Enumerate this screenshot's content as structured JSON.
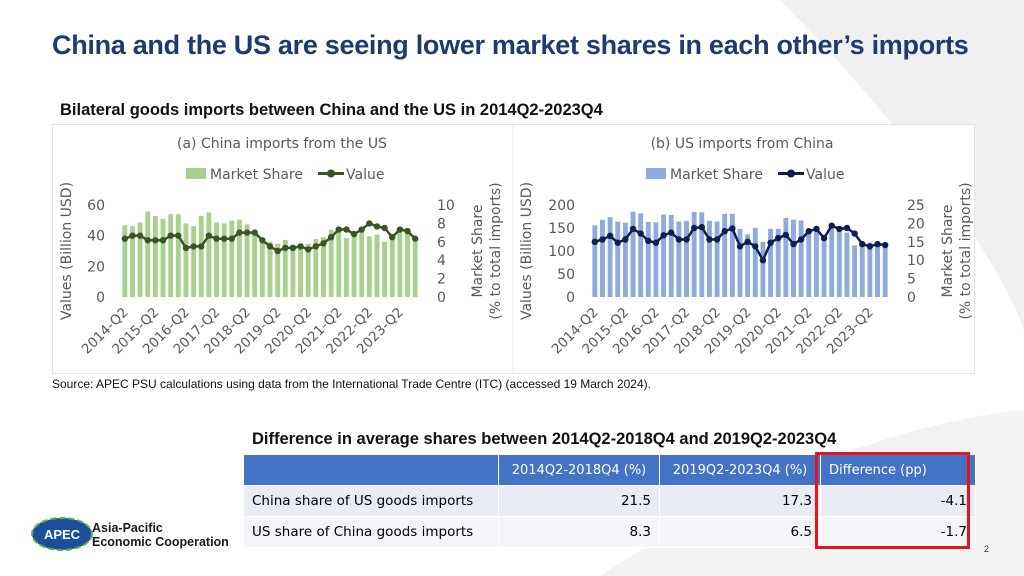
{
  "title": "China and the US are seeing lower market shares in each other’s imports",
  "subtitle": "Bilateral goods imports between China and the US in 2014Q2-2023Q4",
  "source": "Source: APEC PSU calculations using data from the International Trade Centre (ITC) (accessed 19 March 2024).",
  "table": {
    "title": "Difference in average shares between 2014Q2-2018Q4 and 2019Q2-2023Q4",
    "headers": [
      "",
      "2014Q2-2018Q4 (%)",
      "2019Q2-2023Q4 (%)",
      "Difference (pp)"
    ],
    "rows": [
      {
        "label": "China share of US goods imports",
        "v1": "21.5",
        "v2": "17.3",
        "diff": "-4.1"
      },
      {
        "label": "US share of China goods imports",
        "v1": "8.3",
        "v2": "6.5",
        "diff": "-1.7"
      }
    ]
  },
  "logo": {
    "badge": "APEC",
    "line1": "Asia-Pacific",
    "line2": "Economic Cooperation"
  },
  "page_number": "2",
  "colors": {
    "title": "#1f3a73",
    "left_bar": "#a9d18e",
    "left_line": "#375623",
    "right_bar": "#8faadc",
    "right_line": "#0d1f52",
    "table_header": "#4472c4",
    "highlight": "#e8141c"
  },
  "chart_data": [
    {
      "type": "bar",
      "title": "(a) China imports from the US",
      "legend": {
        "bar": "Market Share",
        "line": "Value",
        "placement": "top"
      },
      "ylabel": "Values (Billion USD)",
      "y2label": "Market Share\n(% to total imports)",
      "ylim": [
        0,
        60
      ],
      "yticks": [
        0,
        20,
        40,
        60
      ],
      "y2lim": [
        0,
        10
      ],
      "y2ticks": [
        0,
        2,
        4,
        6,
        8,
        10
      ],
      "xticks": [
        "2014-Q2",
        "2015-Q2",
        "2016-Q2",
        "2017-Q2",
        "2018-Q2",
        "2019-Q2",
        "2020-Q2",
        "2021-Q2",
        "2022-Q2",
        "2023-Q2"
      ],
      "series": [
        {
          "name": "Market Share",
          "kind": "bar",
          "axis": "right",
          "values": [
            7.8,
            7.7,
            8.1,
            9.3,
            8.8,
            8.5,
            9.0,
            9.0,
            8.0,
            7.7,
            8.8,
            9.2,
            8.1,
            8.0,
            8.3,
            8.4,
            7.9,
            7.3,
            6.3,
            6.0,
            5.8,
            6.2,
            5.7,
            5.8,
            5.8,
            6.3,
            6.5,
            7.3,
            7.2,
            6.4,
            6.6,
            7.3,
            6.6,
            6.8,
            6.0,
            6.3,
            7.4,
            7.1,
            6.0
          ]
        },
        {
          "name": "Value",
          "kind": "line",
          "axis": "left",
          "values": [
            38,
            40,
            40,
            37,
            37,
            37,
            40,
            40,
            32,
            33,
            33,
            40,
            38,
            38,
            38,
            42,
            42,
            42,
            37,
            33,
            30,
            32,
            32,
            33,
            31,
            33,
            35,
            39,
            44,
            44,
            41,
            44,
            48,
            46,
            45,
            39,
            44,
            43,
            38
          ]
        }
      ]
    },
    {
      "type": "bar",
      "title": "(b) US imports from China",
      "legend": {
        "bar": "Market Share",
        "line": "Value",
        "placement": "top"
      },
      "ylabel": "Values (Billion USD)",
      "y2label": "Market Share\n(% to total imports)",
      "ylim": [
        0,
        200
      ],
      "yticks": [
        0,
        50,
        100,
        150,
        200
      ],
      "y2lim": [
        0,
        25
      ],
      "y2ticks": [
        0,
        5,
        10,
        15,
        20,
        25
      ],
      "xticks": [
        "2014-Q2",
        "2015-Q2",
        "2016-Q2",
        "2017-Q2",
        "2018-Q2",
        "2019-Q2",
        "2020-Q2",
        "2021-Q2",
        "2022-Q2",
        "2023-Q2"
      ],
      "series": [
        {
          "name": "Market Share",
          "kind": "bar",
          "axis": "right",
          "values": [
            19.5,
            21.0,
            21.7,
            20.5,
            20.2,
            23.2,
            22.7,
            20.4,
            20.3,
            22.4,
            22.3,
            20.5,
            20.7,
            23.1,
            23.0,
            20.7,
            20.5,
            22.6,
            22.6,
            18.5,
            17.0,
            18.8,
            15.0,
            18.5,
            18.5,
            21.5,
            21.0,
            20.8,
            18.0,
            18.5,
            16.8,
            18.5,
            18.0,
            17.5,
            14.0,
            14.5,
            14.8,
            13.8,
            13.5
          ]
        },
        {
          "name": "Value",
          "kind": "line",
          "axis": "left",
          "values": [
            120,
            125,
            133,
            118,
            125,
            148,
            138,
            122,
            118,
            134,
            140,
            125,
            125,
            150,
            152,
            125,
            125,
            143,
            149,
            110,
            120,
            110,
            80,
            118,
            128,
            135,
            115,
            125,
            143,
            148,
            128,
            155,
            148,
            150,
            138,
            115,
            110,
            115,
            113
          ]
        }
      ]
    }
  ]
}
